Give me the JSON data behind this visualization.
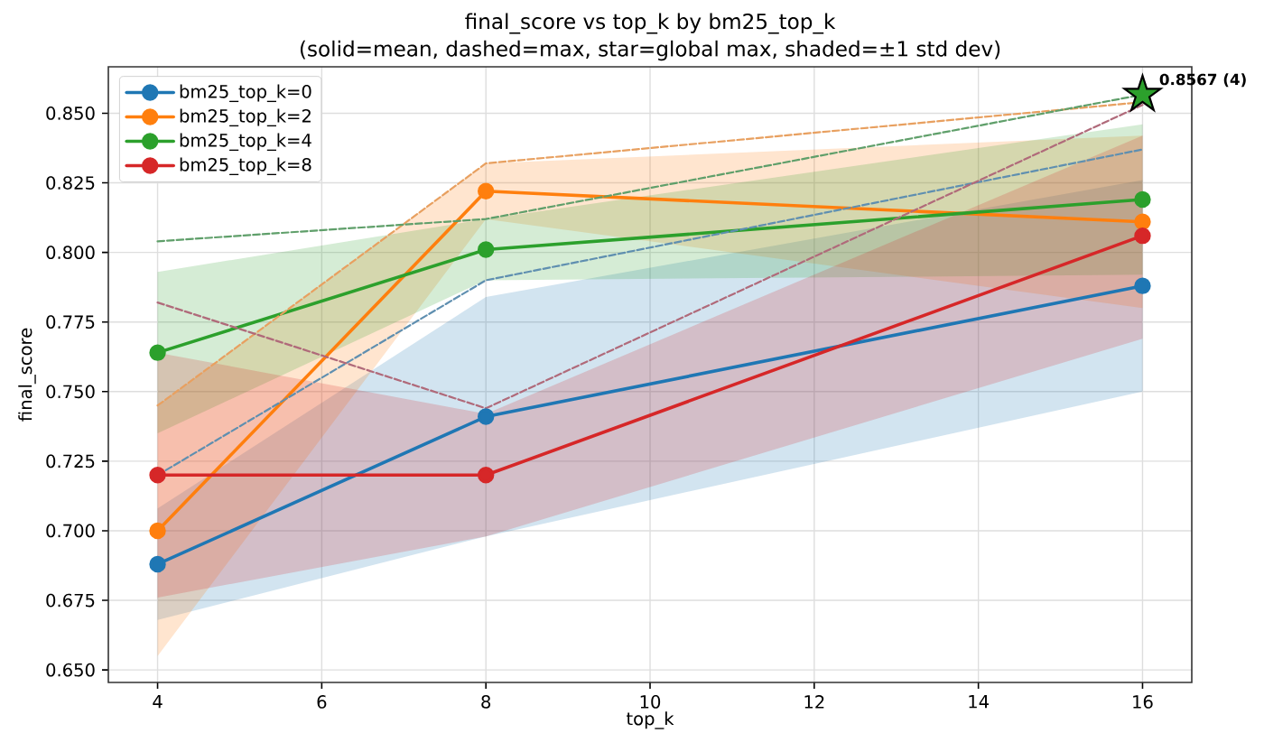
{
  "chart_data": {
    "type": "line",
    "title": "final_score vs top_k by bm25_top_k",
    "subtitle": "(solid=mean, dashed=max, star=global max, shaded=±1 std dev)",
    "xlabel": "top_k",
    "ylabel": "final_score",
    "x": [
      4,
      8,
      16
    ],
    "xlim": [
      3.4,
      16.6
    ],
    "ylim": [
      0.6455,
      0.8667
    ],
    "xticks": [
      4,
      6,
      8,
      10,
      12,
      14,
      16
    ],
    "yticks": [
      {
        "value": 0.65,
        "label": "0.650"
      },
      {
        "value": 0.675,
        "label": "0.675"
      },
      {
        "value": 0.7,
        "label": "0.700"
      },
      {
        "value": 0.725,
        "label": "0.725"
      },
      {
        "value": 0.75,
        "label": "0.750"
      },
      {
        "value": 0.775,
        "label": "0.775"
      },
      {
        "value": 0.8,
        "label": "0.800"
      },
      {
        "value": 0.825,
        "label": "0.825"
      },
      {
        "value": 0.85,
        "label": "0.850"
      }
    ],
    "grid": true,
    "legend": "top left",
    "marker": "circle",
    "series": [
      {
        "name": "bm25_top_k=0",
        "color": "#1f77b4",
        "values": [
          0.688,
          0.741,
          0.788
        ],
        "lower": [
          0.668,
          0.698,
          0.75
        ],
        "upper": [
          0.708,
          0.784,
          0.826
        ]
      },
      {
        "name": "bm25_top_k=2",
        "color": "#ff7f0e",
        "values": [
          0.7,
          0.822,
          0.811
        ],
        "lower": [
          0.655,
          0.812,
          0.78
        ],
        "upper": [
          0.745,
          0.832,
          0.842
        ]
      },
      {
        "name": "bm25_top_k=4",
        "color": "#2ca02c",
        "values": [
          0.764,
          0.801,
          0.819
        ],
        "lower": [
          0.735,
          0.79,
          0.792
        ],
        "upper": [
          0.793,
          0.812,
          0.846
        ]
      },
      {
        "name": "bm25_top_k=8",
        "color": "#d62728",
        "values": [
          0.72,
          0.72,
          0.806
        ],
        "lower": [
          0.676,
          0.698,
          0.769
        ],
        "upper": [
          0.764,
          0.742,
          0.842
        ]
      },
      {
        "color": "#5f8fb0",
        "values": [
          0.72,
          0.79,
          0.837
        ],
        "marker": "none",
        "line_style": "dashed"
      },
      {
        "color": "#e8a060",
        "values": [
          0.745,
          0.832,
          0.854
        ],
        "marker": "none",
        "line_style": "dashed"
      },
      {
        "color": "#5f9f6a",
        "values": [
          0.804,
          0.812,
          0.8567
        ],
        "marker": "none",
        "line_style": "dashed"
      },
      {
        "color": "#b06a7a",
        "values": [
          0.782,
          0.744,
          0.853
        ],
        "marker": "none",
        "line_style": "dashed"
      },
      {
        "type": "scatter",
        "color": "#2ca02c",
        "x": [
          16
        ],
        "values": [
          0.8567
        ],
        "marker": "star"
      }
    ],
    "annotations": [
      {
        "text": "0.8567 (4)",
        "x": 16,
        "y": 0.8567
      }
    ]
  }
}
